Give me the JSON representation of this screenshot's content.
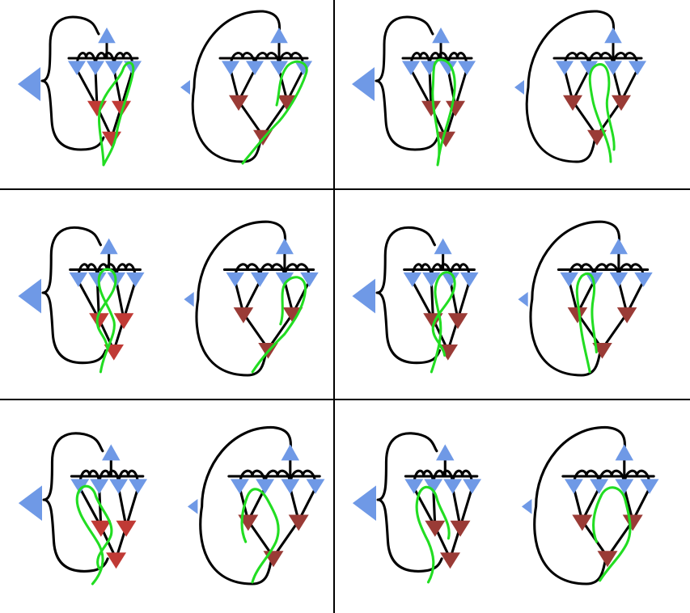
{
  "figure": {
    "grid": {
      "rows": 3,
      "columns": 2,
      "divider_color": "#000000"
    },
    "colors": {
      "blue_node": "#6f99e6",
      "red_node": "#c03a35",
      "darkred_node": "#9a3b36",
      "wire": "#000000",
      "path": "#22dd22"
    },
    "panels": [
      {
        "id": "A",
        "row": 1,
        "col": 1
      },
      {
        "id": "B",
        "row": 1,
        "col": 2
      },
      {
        "id": "C",
        "row": 2,
        "col": 1
      },
      {
        "id": "D",
        "row": 2,
        "col": 2
      },
      {
        "id": "E",
        "row": 3,
        "col": 1
      },
      {
        "id": "F",
        "row": 3,
        "col": 2
      }
    ]
  }
}
